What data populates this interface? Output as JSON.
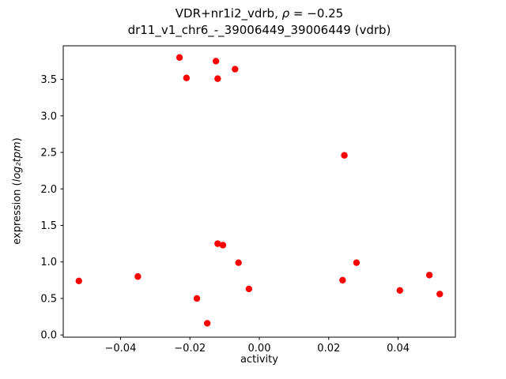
{
  "figure": {
    "title_prefix": "VDR+nr1i2_vdrb, ",
    "title_rho": "ρ",
    "title_value": " = −0.25",
    "subtitle": "dr11_v1_chr6_-_39006449_39006449 (vdrb)",
    "xlabel": "activity",
    "ylabel_prefix": "expression (",
    "ylabel_math": "log₂tpm",
    "ylabel_suffix": ")"
  },
  "chart_data": {
    "type": "scatter",
    "title": "VDR+nr1i2_vdrb, ρ = −0.25",
    "subtitle": "dr11_v1_chr6_-_39006449_39006449 (vdrb)",
    "xlabel": "activity",
    "ylabel": "expression (log2 tpm)",
    "legend": "none",
    "grid": false,
    "marker_color": "#ff0000",
    "marker_radius": 4.2,
    "xlim": [
      -0.0565,
      0.0565
    ],
    "ylim": [
      -0.03,
      3.96
    ],
    "xticks": {
      "values": [
        -0.04,
        -0.02,
        0.0,
        0.02,
        0.04
      ],
      "labels": [
        "−0.04",
        "−0.02",
        "0.00",
        "0.02",
        "0.04"
      ]
    },
    "yticks": {
      "values": [
        0.0,
        0.5,
        1.0,
        1.5,
        2.0,
        2.5,
        3.0,
        3.5
      ],
      "labels": [
        "0.0",
        "0.5",
        "1.0",
        "1.5",
        "2.0",
        "2.5",
        "3.0",
        "3.5"
      ]
    },
    "points": [
      [
        -0.052,
        0.74
      ],
      [
        -0.035,
        0.8
      ],
      [
        -0.023,
        3.8
      ],
      [
        -0.021,
        3.52
      ],
      [
        -0.018,
        0.5
      ],
      [
        -0.015,
        0.16
      ],
      [
        -0.0125,
        3.75
      ],
      [
        -0.012,
        3.51
      ],
      [
        -0.012,
        1.25
      ],
      [
        -0.0105,
        1.23
      ],
      [
        -0.007,
        3.64
      ],
      [
        -0.006,
        0.99
      ],
      [
        -0.003,
        0.63
      ],
      [
        0.0245,
        2.46
      ],
      [
        0.024,
        0.75
      ],
      [
        0.028,
        0.99
      ],
      [
        0.0405,
        0.61
      ],
      [
        0.049,
        0.82
      ],
      [
        0.052,
        0.56
      ]
    ]
  }
}
